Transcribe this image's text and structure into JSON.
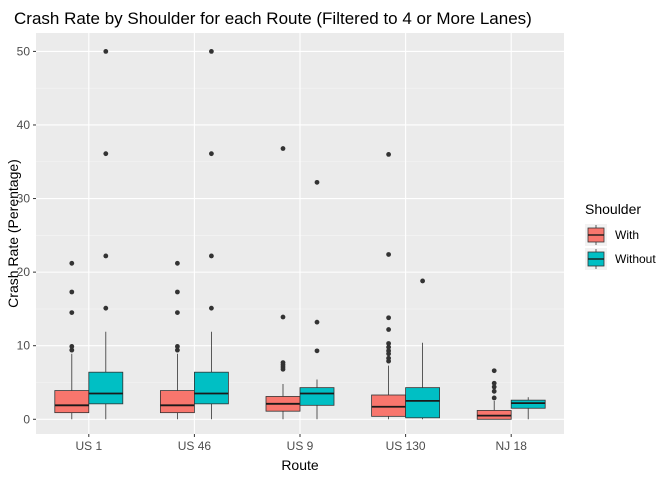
{
  "chart_data": {
    "type": "box",
    "title": "Crash Rate by Shoulder for each Route (Filtered to 4 or More Lanes)",
    "xlabel": "Route",
    "ylabel": "Crash Rate (Perentage)",
    "ylim": [
      -2,
      52.5
    ],
    "yticks": [
      0,
      10,
      20,
      30,
      40,
      50
    ],
    "categories": [
      "US 1",
      "US 46",
      "US 9",
      "US 130",
      "NJ 18"
    ],
    "grid": true,
    "background": "#ebebeb",
    "legend": {
      "title": "Shoulder",
      "position": "right",
      "entries": [
        {
          "label": "With",
          "color": "#f8766d"
        },
        {
          "label": "Without",
          "color": "#00bfc4"
        }
      ]
    },
    "series": [
      {
        "name": "With",
        "color": "#f8766d",
        "boxes": [
          {
            "min": 0.0,
            "q1": 0.9,
            "median": 1.9,
            "q3": 3.9,
            "max": 8.9,
            "outliers": [
              9.4,
              9.9,
              14.5,
              17.3,
              21.2
            ]
          },
          {
            "min": 0.0,
            "q1": 0.9,
            "median": 1.9,
            "q3": 3.9,
            "max": 8.9,
            "outliers": [
              9.4,
              9.9,
              14.5,
              17.3,
              21.2
            ]
          },
          {
            "min": 0.0,
            "q1": 1.1,
            "median": 2.1,
            "q3": 3.1,
            "max": 4.8,
            "outliers": [
              6.8,
              7.1,
              7.4,
              7.7,
              13.9,
              36.8
            ]
          },
          {
            "min": 0.0,
            "q1": 0.4,
            "median": 1.7,
            "q3": 3.3,
            "max": 7.3,
            "outliers": [
              7.9,
              8.3,
              8.9,
              9.3,
              9.8,
              10.3,
              12.2,
              13.8,
              22.4,
              36.0
            ]
          },
          {
            "min": 0.0,
            "q1": 0.0,
            "median": 0.5,
            "q3": 1.2,
            "max": 2.5,
            "outliers": [
              2.9,
              3.8,
              4.4,
              4.9,
              6.6
            ]
          }
        ]
      },
      {
        "name": "Without",
        "color": "#00bfc4",
        "boxes": [
          {
            "min": 0.0,
            "q1": 2.1,
            "median": 3.5,
            "q3": 6.4,
            "max": 11.9,
            "outliers": [
              15.1,
              22.2,
              36.1,
              50.0
            ]
          },
          {
            "min": 0.0,
            "q1": 2.1,
            "median": 3.5,
            "q3": 6.4,
            "max": 11.9,
            "outliers": [
              15.1,
              22.2,
              36.1,
              50.0
            ]
          },
          {
            "min": 0.0,
            "q1": 1.9,
            "median": 3.5,
            "q3": 4.3,
            "max": 5.4,
            "outliers": [
              9.3,
              13.2,
              32.2
            ]
          },
          {
            "min": 0.0,
            "q1": 0.2,
            "median": 2.5,
            "q3": 4.3,
            "max": 10.4,
            "outliers": [
              18.8
            ]
          },
          {
            "min": 0.0,
            "q1": 1.5,
            "median": 2.2,
            "q3": 2.6,
            "max": 3.0,
            "outliers": []
          }
        ]
      }
    ]
  }
}
